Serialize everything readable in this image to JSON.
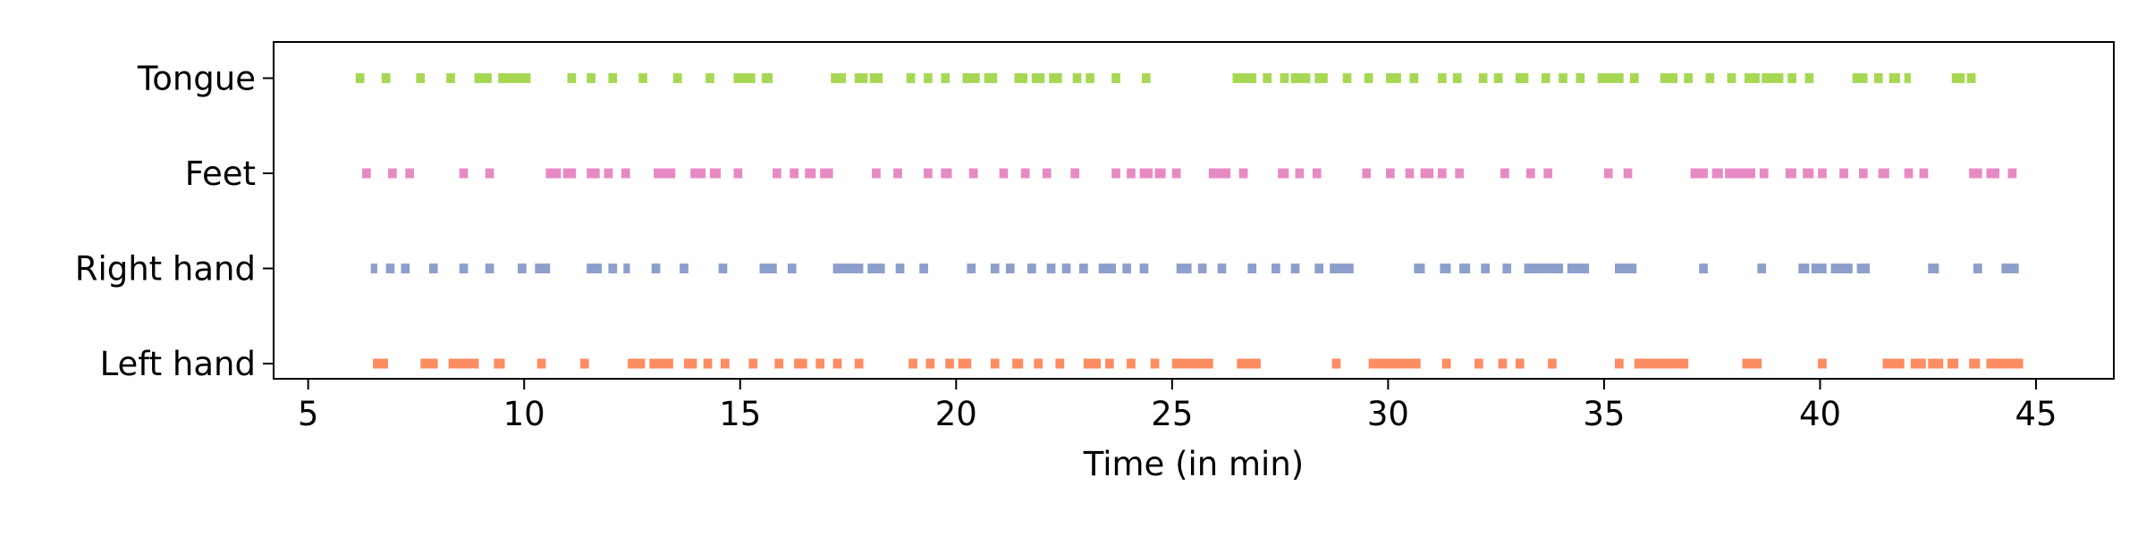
{
  "chart_data": {
    "type": "event-raster",
    "title": "",
    "xlabel": "Time (in min)",
    "ylabel": "",
    "xlim": [
      4.2,
      46.8
    ],
    "x_ticks": [
      5,
      10,
      15,
      20,
      25,
      30,
      35,
      40,
      45
    ],
    "grid": false,
    "legend": "none",
    "categories": [
      "Left hand",
      "Right hand",
      "Feet",
      "Tongue"
    ],
    "series": [
      {
        "category": "Left hand",
        "color": "#fc8d62",
        "events": [
          [
            6.5,
            6.85
          ],
          [
            7.6,
            8.0
          ],
          [
            8.25,
            8.95
          ],
          [
            9.3,
            9.55
          ],
          [
            10.3,
            10.5
          ],
          [
            11.3,
            11.5
          ],
          [
            12.4,
            12.8
          ],
          [
            12.9,
            13.45
          ],
          [
            13.7,
            14.0
          ],
          [
            14.15,
            14.35
          ],
          [
            14.55,
            14.75
          ],
          [
            15.2,
            15.4
          ],
          [
            15.8,
            16.0
          ],
          [
            16.25,
            16.55
          ],
          [
            16.75,
            16.95
          ],
          [
            17.15,
            17.35
          ],
          [
            17.65,
            17.85
          ],
          [
            18.9,
            19.1
          ],
          [
            19.3,
            19.5
          ],
          [
            19.75,
            19.95
          ],
          [
            20.05,
            20.35
          ],
          [
            20.8,
            21.0
          ],
          [
            21.3,
            21.55
          ],
          [
            21.8,
            22.0
          ],
          [
            22.3,
            22.5
          ],
          [
            22.95,
            23.35
          ],
          [
            23.45,
            23.65
          ],
          [
            23.95,
            24.15
          ],
          [
            24.5,
            24.7
          ],
          [
            25.0,
            25.95
          ],
          [
            26.5,
            27.05
          ],
          [
            28.7,
            28.9
          ],
          [
            29.55,
            30.75
          ],
          [
            31.25,
            31.45
          ],
          [
            32.0,
            32.2
          ],
          [
            32.55,
            32.75
          ],
          [
            32.95,
            33.15
          ],
          [
            33.7,
            33.9
          ],
          [
            35.25,
            35.45
          ],
          [
            35.7,
            36.95
          ],
          [
            38.2,
            38.65
          ],
          [
            39.95,
            40.15
          ],
          [
            41.45,
            41.95
          ],
          [
            42.1,
            42.45
          ],
          [
            42.5,
            42.85
          ],
          [
            42.95,
            43.2
          ],
          [
            43.45,
            43.7
          ],
          [
            43.85,
            44.7
          ]
        ]
      },
      {
        "category": "Right hand",
        "color": "#8da0cb",
        "events": [
          [
            6.45,
            6.6
          ],
          [
            6.8,
            7.0
          ],
          [
            7.15,
            7.35
          ],
          [
            7.8,
            8.0
          ],
          [
            8.5,
            8.7
          ],
          [
            9.1,
            9.3
          ],
          [
            9.85,
            10.05
          ],
          [
            10.25,
            10.6
          ],
          [
            11.45,
            11.8
          ],
          [
            11.95,
            12.15
          ],
          [
            12.3,
            12.45
          ],
          [
            12.95,
            13.15
          ],
          [
            13.6,
            13.8
          ],
          [
            14.5,
            14.7
          ],
          [
            15.45,
            15.85
          ],
          [
            16.1,
            16.3
          ],
          [
            17.15,
            17.85
          ],
          [
            17.95,
            18.35
          ],
          [
            18.6,
            18.8
          ],
          [
            19.15,
            19.35
          ],
          [
            20.25,
            20.45
          ],
          [
            20.8,
            21.0
          ],
          [
            21.15,
            21.35
          ],
          [
            21.65,
            21.85
          ],
          [
            22.1,
            22.3
          ],
          [
            22.45,
            22.65
          ],
          [
            22.85,
            23.05
          ],
          [
            23.3,
            23.7
          ],
          [
            23.85,
            24.05
          ],
          [
            24.25,
            24.45
          ],
          [
            25.1,
            25.45
          ],
          [
            25.6,
            25.8
          ],
          [
            26.05,
            26.25
          ],
          [
            26.75,
            26.95
          ],
          [
            27.3,
            27.5
          ],
          [
            27.75,
            27.95
          ],
          [
            28.3,
            28.5
          ],
          [
            28.65,
            29.2
          ],
          [
            30.6,
            30.85
          ],
          [
            31.2,
            31.45
          ],
          [
            31.65,
            31.9
          ],
          [
            32.15,
            32.35
          ],
          [
            32.65,
            32.85
          ],
          [
            33.15,
            34.05
          ],
          [
            34.15,
            34.65
          ],
          [
            35.25,
            35.75
          ],
          [
            37.2,
            37.4
          ],
          [
            38.55,
            38.75
          ],
          [
            39.5,
            39.75
          ],
          [
            39.8,
            40.15
          ],
          [
            40.25,
            40.75
          ],
          [
            40.85,
            41.15
          ],
          [
            42.5,
            42.75
          ],
          [
            43.55,
            43.75
          ],
          [
            44.2,
            44.6
          ]
        ]
      },
      {
        "category": "Feet",
        "color": "#e78ac3",
        "events": [
          [
            6.25,
            6.45
          ],
          [
            6.85,
            7.05
          ],
          [
            7.25,
            7.45
          ],
          [
            8.5,
            8.7
          ],
          [
            9.1,
            9.3
          ],
          [
            10.5,
            10.85
          ],
          [
            10.9,
            11.2
          ],
          [
            11.45,
            11.75
          ],
          [
            11.85,
            12.05
          ],
          [
            12.25,
            12.45
          ],
          [
            13.0,
            13.5
          ],
          [
            13.85,
            14.2
          ],
          [
            14.3,
            14.55
          ],
          [
            14.85,
            15.05
          ],
          [
            15.75,
            15.95
          ],
          [
            16.15,
            16.35
          ],
          [
            16.5,
            16.75
          ],
          [
            16.85,
            17.15
          ],
          [
            18.05,
            18.25
          ],
          [
            18.55,
            18.75
          ],
          [
            19.25,
            19.45
          ],
          [
            19.65,
            19.9
          ],
          [
            20.3,
            20.5
          ],
          [
            21.0,
            21.2
          ],
          [
            21.5,
            21.7
          ],
          [
            22.0,
            22.2
          ],
          [
            22.65,
            22.85
          ],
          [
            23.6,
            23.8
          ],
          [
            23.95,
            24.15
          ],
          [
            24.25,
            24.55
          ],
          [
            24.6,
            24.85
          ],
          [
            25.0,
            25.2
          ],
          [
            25.85,
            26.35
          ],
          [
            26.55,
            26.75
          ],
          [
            27.45,
            27.7
          ],
          [
            27.85,
            28.05
          ],
          [
            28.25,
            28.45
          ],
          [
            29.4,
            29.6
          ],
          [
            29.95,
            30.15
          ],
          [
            30.4,
            30.6
          ],
          [
            30.75,
            31.05
          ],
          [
            31.15,
            31.35
          ],
          [
            31.55,
            31.75
          ],
          [
            32.6,
            32.8
          ],
          [
            33.2,
            33.4
          ],
          [
            33.6,
            33.8
          ],
          [
            35.0,
            35.2
          ],
          [
            35.45,
            35.65
          ],
          [
            37.0,
            37.4
          ],
          [
            37.5,
            37.75
          ],
          [
            37.8,
            38.5
          ],
          [
            38.6,
            38.8
          ],
          [
            39.2,
            39.45
          ],
          [
            39.6,
            39.85
          ],
          [
            39.95,
            40.15
          ],
          [
            40.45,
            40.65
          ],
          [
            40.9,
            41.1
          ],
          [
            41.35,
            41.6
          ],
          [
            41.95,
            42.15
          ],
          [
            42.3,
            42.5
          ],
          [
            43.45,
            43.75
          ],
          [
            43.85,
            44.15
          ],
          [
            44.35,
            44.55
          ]
        ]
      },
      {
        "category": "Tongue",
        "color": "#a6d854",
        "events": [
          [
            6.1,
            6.3
          ],
          [
            6.7,
            6.9
          ],
          [
            7.5,
            7.7
          ],
          [
            8.2,
            8.4
          ],
          [
            8.85,
            9.25
          ],
          [
            9.4,
            10.15
          ],
          [
            11.0,
            11.2
          ],
          [
            11.45,
            11.65
          ],
          [
            11.95,
            12.15
          ],
          [
            12.65,
            12.85
          ],
          [
            13.45,
            13.65
          ],
          [
            14.2,
            14.4
          ],
          [
            14.85,
            15.35
          ],
          [
            15.5,
            15.75
          ],
          [
            17.1,
            17.45
          ],
          [
            17.65,
            17.95
          ],
          [
            18.0,
            18.3
          ],
          [
            18.85,
            19.05
          ],
          [
            19.25,
            19.45
          ],
          [
            19.65,
            19.85
          ],
          [
            20.15,
            20.55
          ],
          [
            20.65,
            20.95
          ],
          [
            21.35,
            21.65
          ],
          [
            21.75,
            22.05
          ],
          [
            22.15,
            22.45
          ],
          [
            22.7,
            22.9
          ],
          [
            23.0,
            23.2
          ],
          [
            23.6,
            23.8
          ],
          [
            24.3,
            24.5
          ],
          [
            26.4,
            26.95
          ],
          [
            27.1,
            27.3
          ],
          [
            27.5,
            27.7
          ],
          [
            27.75,
            28.2
          ],
          [
            28.3,
            28.6
          ],
          [
            28.95,
            29.15
          ],
          [
            29.45,
            29.65
          ],
          [
            29.95,
            30.3
          ],
          [
            30.5,
            30.7
          ],
          [
            31.15,
            31.35
          ],
          [
            31.5,
            31.7
          ],
          [
            32.1,
            32.3
          ],
          [
            32.45,
            32.65
          ],
          [
            32.95,
            33.25
          ],
          [
            33.55,
            33.75
          ],
          [
            33.95,
            34.15
          ],
          [
            34.35,
            34.55
          ],
          [
            34.85,
            35.45
          ],
          [
            35.6,
            35.8
          ],
          [
            36.3,
            36.7
          ],
          [
            36.85,
            37.05
          ],
          [
            37.35,
            37.55
          ],
          [
            37.85,
            38.05
          ],
          [
            38.25,
            38.6
          ],
          [
            38.65,
            39.15
          ],
          [
            39.25,
            39.45
          ],
          [
            39.65,
            39.85
          ],
          [
            40.75,
            41.1
          ],
          [
            41.25,
            41.45
          ],
          [
            41.6,
            41.85
          ],
          [
            41.95,
            42.1
          ],
          [
            43.05,
            43.35
          ],
          [
            43.4,
            43.6
          ]
        ]
      }
    ]
  }
}
